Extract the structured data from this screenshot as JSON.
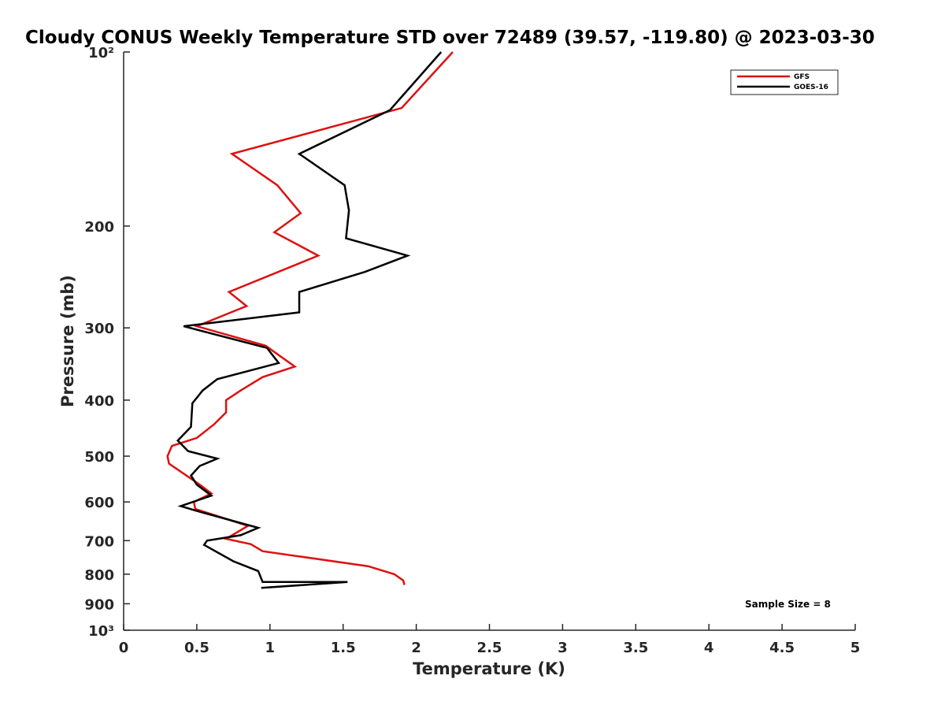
{
  "chart_data": {
    "type": "line",
    "title": "Cloudy CONUS Weekly Temperature STD over 72489 (39.57, -119.80) @ 2023-03-30",
    "xlabel": "Temperature (K)",
    "ylabel": "Pressure (mb)",
    "xlim": [
      0,
      5
    ],
    "ylim": [
      100,
      1000
    ],
    "y_scale": "log",
    "y_reversed": true,
    "x_ticks": [
      0,
      0.5,
      1,
      1.5,
      2,
      2.5,
      3,
      3.5,
      4,
      4.5,
      5
    ],
    "x_tick_labels": [
      "0",
      "0.5",
      "1",
      "1.5",
      "2",
      "2.5",
      "3",
      "3.5",
      "4",
      "4.5",
      "5"
    ],
    "y_ticks": [
      100,
      200,
      300,
      400,
      500,
      600,
      700,
      800,
      900,
      1000
    ],
    "y_tick_labels": [
      "10²",
      "200",
      "300",
      "400",
      "500",
      "600",
      "700",
      "800",
      "900",
      "10³"
    ],
    "grid": false,
    "legend_position": "top-right",
    "annotation": "Sample Size = 8",
    "series": [
      {
        "name": "GFS",
        "color": "#dd1111",
        "points": [
          [
            2.25,
            100
          ],
          [
            1.9,
            125
          ],
          [
            0.74,
            150
          ],
          [
            1.05,
            170
          ],
          [
            1.21,
            190
          ],
          [
            1.03,
            205
          ],
          [
            1.33,
            225
          ],
          [
            0.72,
            260
          ],
          [
            0.84,
            275
          ],
          [
            0.5,
            298
          ],
          [
            0.97,
            322
          ],
          [
            1.17,
            350
          ],
          [
            0.95,
            365
          ],
          [
            0.8,
            385
          ],
          [
            0.7,
            400
          ],
          [
            0.7,
            420
          ],
          [
            0.62,
            440
          ],
          [
            0.5,
            465
          ],
          [
            0.33,
            480
          ],
          [
            0.3,
            500
          ],
          [
            0.31,
            515
          ],
          [
            0.52,
            560
          ],
          [
            0.6,
            580
          ],
          [
            0.48,
            600
          ],
          [
            0.49,
            617
          ],
          [
            0.85,
            660
          ],
          [
            0.7,
            695
          ],
          [
            0.87,
            710
          ],
          [
            0.95,
            730
          ],
          [
            1.67,
            775
          ],
          [
            1.85,
            800
          ],
          [
            1.91,
            820
          ],
          [
            1.92,
            835
          ]
        ]
      },
      {
        "name": "GOES-16",
        "color": "#000000",
        "points": [
          [
            2.17,
            100
          ],
          [
            1.82,
            126
          ],
          [
            1.2,
            150
          ],
          [
            1.51,
            170
          ],
          [
            1.54,
            188
          ],
          [
            1.52,
            210
          ],
          [
            1.94,
            225
          ],
          [
            1.65,
            240
          ],
          [
            1.2,
            260
          ],
          [
            1.2,
            282
          ],
          [
            0.41,
            298
          ],
          [
            0.98,
            325
          ],
          [
            1.06,
            345
          ],
          [
            0.64,
            368
          ],
          [
            0.54,
            385
          ],
          [
            0.47,
            405
          ],
          [
            0.46,
            445
          ],
          [
            0.37,
            470
          ],
          [
            0.44,
            490
          ],
          [
            0.64,
            505
          ],
          [
            0.52,
            520
          ],
          [
            0.46,
            540
          ],
          [
            0.5,
            560
          ],
          [
            0.6,
            585
          ],
          [
            0.39,
            610
          ],
          [
            0.5,
            622
          ],
          [
            0.92,
            665
          ],
          [
            0.8,
            685
          ],
          [
            0.57,
            700
          ],
          [
            0.55,
            712
          ],
          [
            0.75,
            760
          ],
          [
            0.92,
            790
          ],
          [
            0.95,
            825
          ],
          [
            1.53,
            825
          ],
          [
            0.94,
            845
          ]
        ]
      }
    ]
  }
}
